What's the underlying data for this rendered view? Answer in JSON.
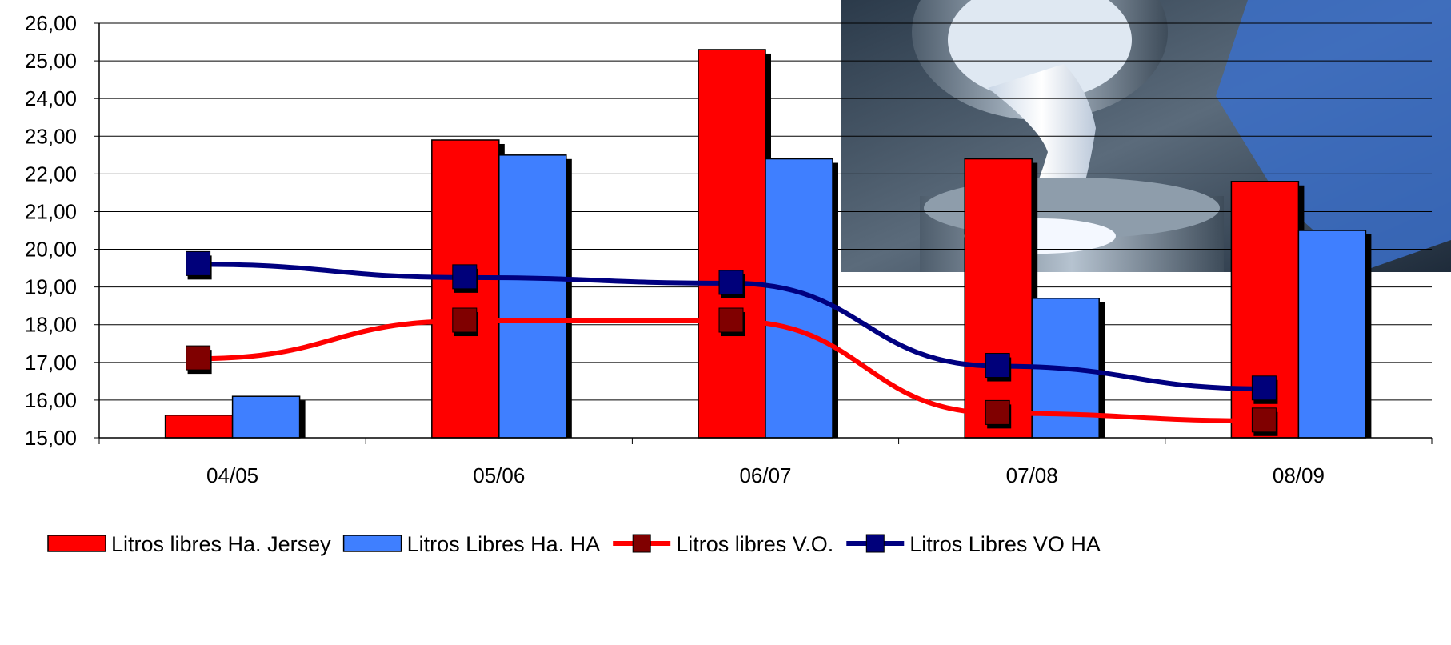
{
  "chart_data": {
    "type": "bar",
    "title": "",
    "xlabel": "",
    "ylabel": "",
    "categories": [
      "04/05",
      "05/06",
      "06/07",
      "07/08",
      "08/09"
    ],
    "ylim": [
      15,
      26
    ],
    "yticks": [
      "15,00",
      "16,00",
      "17,00",
      "18,00",
      "19,00",
      "20,00",
      "21,00",
      "22,00",
      "23,00",
      "24,00",
      "25,00",
      "26,00"
    ],
    "grid": true,
    "legend_position": "bottom",
    "series": [
      {
        "name": "Litros libres Ha. Jersey",
        "kind": "bar",
        "color": "#ff0000",
        "values": [
          15.6,
          22.9,
          25.3,
          22.4,
          21.8
        ]
      },
      {
        "name": "Litros Libres Ha. HA",
        "kind": "bar",
        "color": "#3f7fff",
        "values": [
          16.1,
          22.5,
          22.4,
          18.7,
          20.5
        ]
      },
      {
        "name": "Litros libres V.O.",
        "kind": "line",
        "color": "#ff0000",
        "marker_color": "#800000",
        "values": [
          17.1,
          18.1,
          18.1,
          15.65,
          15.45
        ]
      },
      {
        "name": "Litros Libres VO HA",
        "kind": "line",
        "color": "#000080",
        "marker_color": "#00007a",
        "values": [
          19.6,
          19.25,
          19.1,
          16.9,
          16.3
        ]
      }
    ],
    "image": {
      "icon": "milk-pouring-photo-icon",
      "corner": "top-right"
    }
  }
}
